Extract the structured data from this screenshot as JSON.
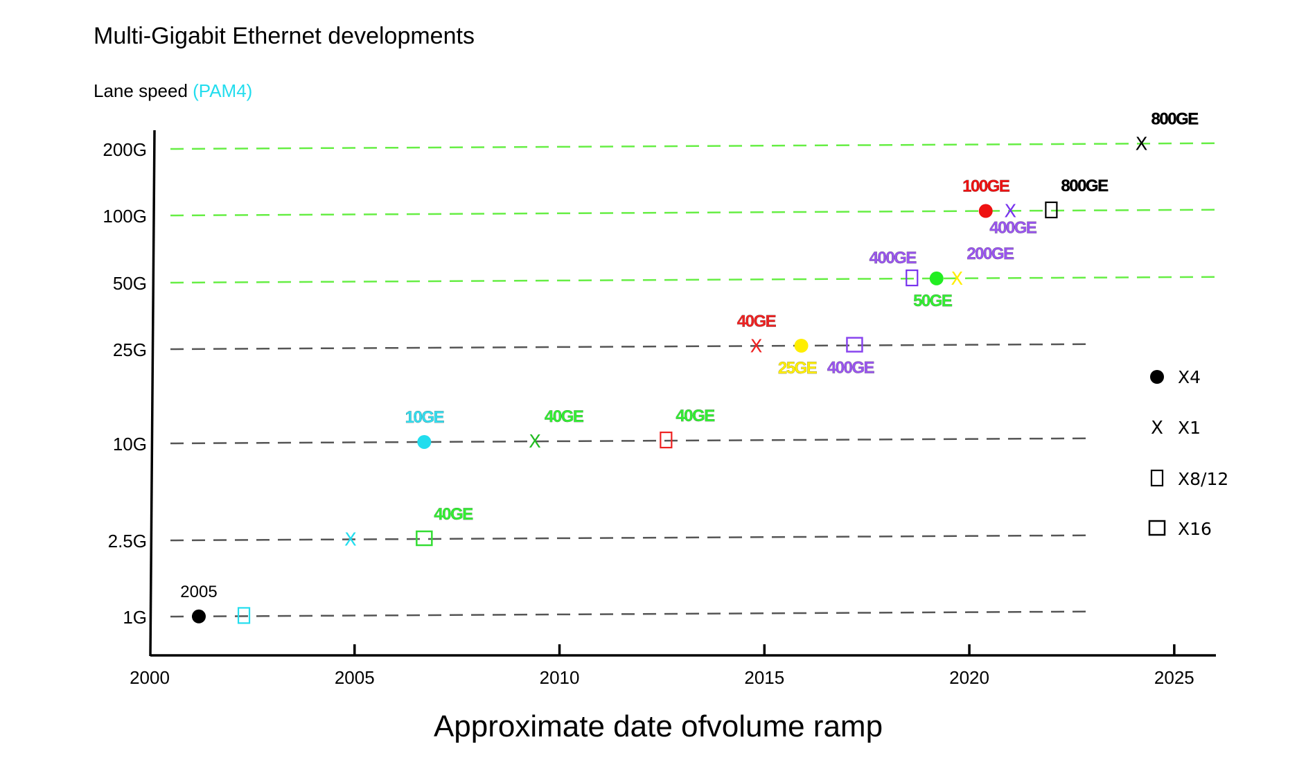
{
  "chart_data": {
    "type": "scatter",
    "title": "Multi-Gigabit Ethernet developments",
    "ylabel": "Lane speed",
    "ylabel_note": "(PAM4)",
    "xlabel": "Approximate date ofvolume ramp",
    "xlim": [
      2000,
      2026
    ],
    "x_ticks": [
      "2000",
      "2005",
      "2010",
      "2015",
      "2020",
      "2025"
    ],
    "y_levels": [
      {
        "label": "1G",
        "value": 1,
        "line_color": "#555555",
        "x_end": 2023
      },
      {
        "label": "2.5G",
        "value": 2.5,
        "line_color": "#555555",
        "x_end": 2023
      },
      {
        "label": "10G",
        "value": 10,
        "line_color": "#555555",
        "x_end": 2023
      },
      {
        "label": "25G",
        "value": 25,
        "line_color": "#555555",
        "x_end": 2023
      },
      {
        "label": "50G",
        "value": 50,
        "line_color": "#66ee44",
        "x_end": 2026
      },
      {
        "label": "100G",
        "value": 100,
        "line_color": "#66ee44",
        "x_end": 2026
      },
      {
        "label": "200G",
        "value": 200,
        "line_color": "#66ee44",
        "x_end": 2026
      }
    ],
    "points": [
      {
        "x": 2001.2,
        "level": 1,
        "marker": "dot",
        "color": "#000000",
        "label": "2005",
        "label_color": "#000000",
        "label_pos": "above"
      },
      {
        "x": 2002.3,
        "level": 1,
        "marker": "rect",
        "color": "#22ddee",
        "label": "",
        "label_color": "",
        "label_pos": "none"
      },
      {
        "x": 2004.9,
        "level": 2.5,
        "marker": "x",
        "color": "#22ddee",
        "label": "",
        "label_color": "",
        "label_pos": "none"
      },
      {
        "x": 2006.7,
        "level": 2.5,
        "marker": "square",
        "color": "#33dd33",
        "label": "40GE",
        "label_color": "#33ee33",
        "label_pos": "above-right"
      },
      {
        "x": 2006.7,
        "level": 10,
        "marker": "dot",
        "color": "#22ddee",
        "label": "10GE",
        "label_color": "#33ddee",
        "label_pos": "above"
      },
      {
        "x": 2009.4,
        "level": 10,
        "marker": "x",
        "color": "#22bb22",
        "label": "40GE",
        "label_color": "#33ee33",
        "label_pos": "above-right"
      },
      {
        "x": 2012.6,
        "level": 10,
        "marker": "rect",
        "color": "#ee2222",
        "label": "40GE",
        "label_color": "#33ee33",
        "label_pos": "above-right"
      },
      {
        "x": 2014.8,
        "level": 25,
        "marker": "x",
        "color": "#ee2222",
        "label": "40GE",
        "label_color": "#ee2222",
        "label_pos": "above"
      },
      {
        "x": 2015.9,
        "level": 25,
        "marker": "dot",
        "color": "#ffee00",
        "label": "25GE",
        "label_color": "#ffee00",
        "label_pos": "below"
      },
      {
        "x": 2017.2,
        "level": 25,
        "marker": "square",
        "color": "#8844ee",
        "label": "400GE",
        "label_color": "#9955ee",
        "label_pos": "below"
      },
      {
        "x": 2018.6,
        "level": 50,
        "marker": "rect",
        "color": "#7733ee",
        "label": "400GE",
        "label_color": "#9955ee",
        "label_pos": "above-left"
      },
      {
        "x": 2019.2,
        "level": 50,
        "marker": "dot",
        "color": "#22ee22",
        "label": "50GE",
        "label_color": "#33ee33",
        "label_pos": "below"
      },
      {
        "x": 2019.7,
        "level": 50,
        "marker": "x",
        "color": "#ffee00",
        "label": "200GE",
        "label_color": "#9955ee",
        "label_pos": "above-right"
      },
      {
        "x": 2020.4,
        "level": 100,
        "marker": "dot",
        "color": "#ee1111",
        "label": "100GE",
        "label_color": "#ee1111",
        "label_pos": "above"
      },
      {
        "x": 2021.0,
        "level": 100,
        "marker": "x",
        "color": "#7733ee",
        "label": "400GE",
        "label_color": "#9955ee",
        "label_pos": "below-right"
      },
      {
        "x": 2022.0,
        "level": 100,
        "marker": "rect",
        "color": "#000000",
        "label": "800GE",
        "label_color": "#000000",
        "label_pos": "above-right"
      },
      {
        "x": 2024.2,
        "level": 200,
        "marker": "x",
        "color": "#000000",
        "label": "800GE",
        "label_color": "#000000",
        "label_pos": "above-right"
      }
    ],
    "legend": {
      "position": "right",
      "items": [
        {
          "marker": "dot",
          "label": "X4"
        },
        {
          "marker": "x",
          "label": "X1"
        },
        {
          "marker": "rect",
          "label": "X8/12"
        },
        {
          "marker": "square",
          "label": "X16"
        }
      ]
    }
  },
  "colors": {
    "cyan_note": "#22ddee",
    "axis": "#000000",
    "dashed_gray": "#555555",
    "dashed_green": "#66ee44"
  }
}
